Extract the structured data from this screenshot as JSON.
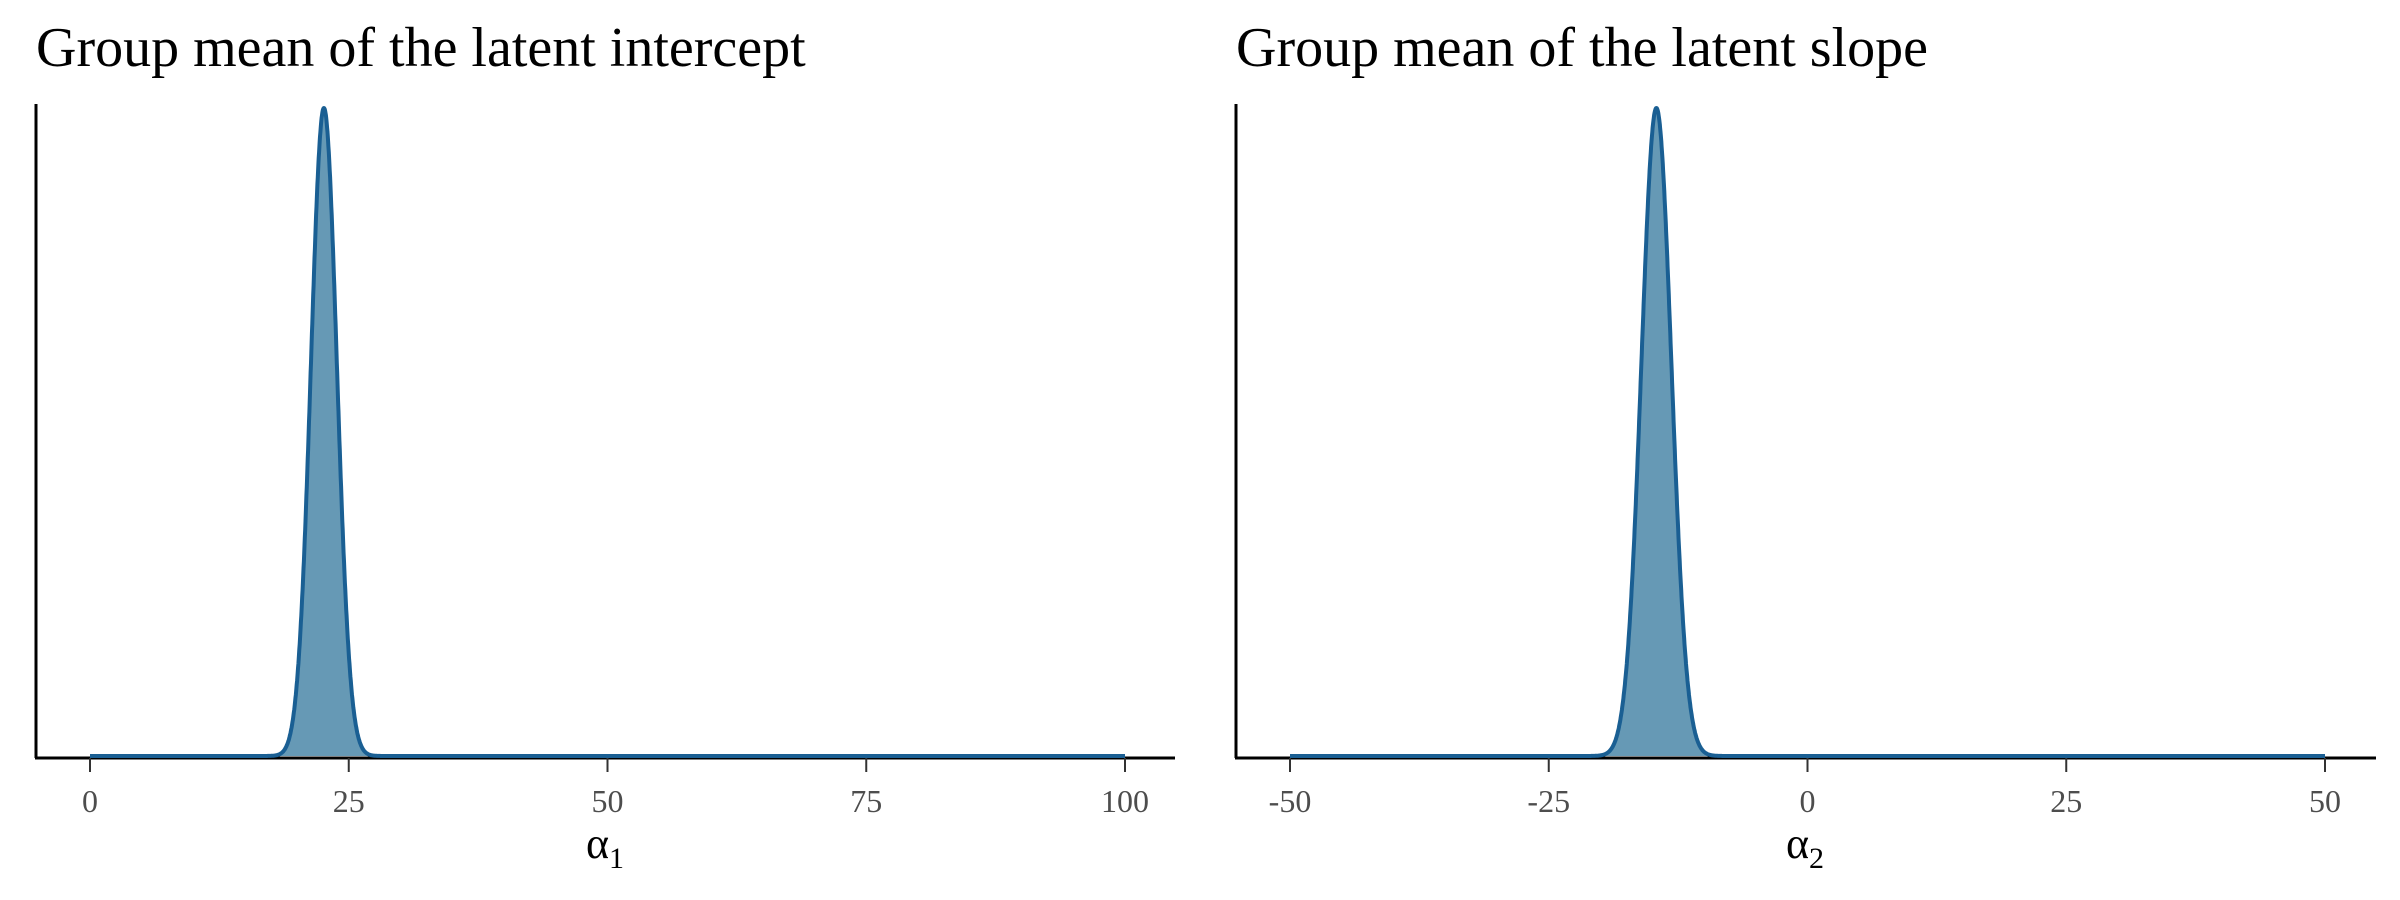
{
  "chart_data": [
    {
      "type": "area",
      "title": "Group mean of the latent intercept",
      "xlabel": "α",
      "xlabel_subscript": "1",
      "ylabel": "",
      "xlim": [
        0,
        100
      ],
      "ticks": [
        {
          "value": 0,
          "label": "0"
        },
        {
          "value": 25,
          "label": "25"
        },
        {
          "value": 50,
          "label": "50"
        },
        {
          "value": 75,
          "label": "75"
        },
        {
          "value": 100,
          "label": "100"
        }
      ],
      "density": {
        "mean": 22.6,
        "sd": 1.25,
        "support": [
          0,
          100
        ]
      },
      "y_ticks_shown": false,
      "grid": false,
      "fill_color": "#6699b5",
      "line_color": "#1a5f93"
    },
    {
      "type": "area",
      "title": "Group mean of the latent slope",
      "xlabel": "α",
      "xlabel_subscript": "2",
      "ylabel": "",
      "xlim": [
        -50,
        50
      ],
      "ticks": [
        {
          "value": -50,
          "label": "-50"
        },
        {
          "value": -25,
          "label": "-25"
        },
        {
          "value": 0,
          "label": "0"
        },
        {
          "value": 25,
          "label": "25"
        },
        {
          "value": 50,
          "label": "50"
        }
      ],
      "density": {
        "mean": -14.6,
        "sd": 1.45,
        "support": [
          -50,
          50
        ]
      },
      "y_ticks_shown": false,
      "grid": false,
      "fill_color": "#6699b5",
      "line_color": "#1a5f93"
    }
  ]
}
